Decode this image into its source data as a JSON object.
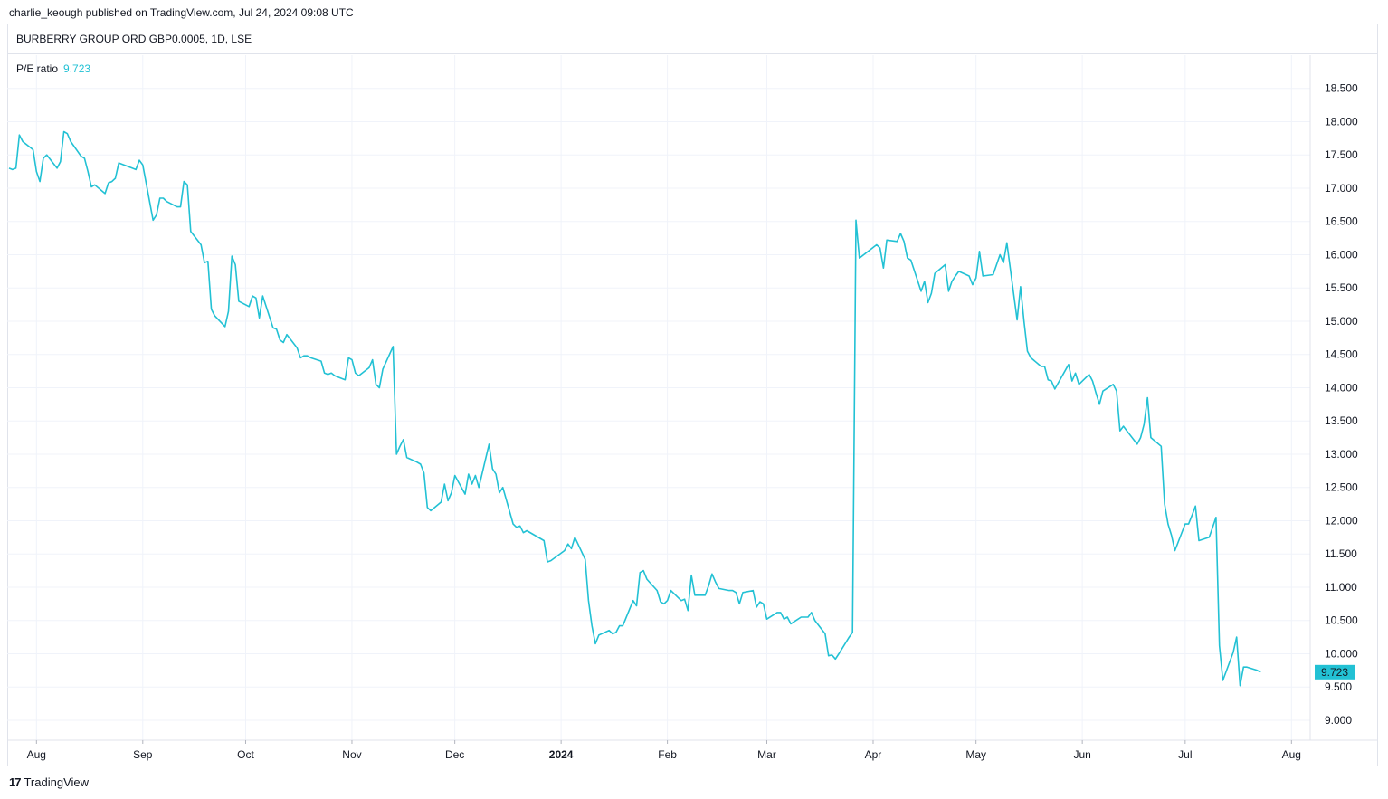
{
  "header": {
    "publish_info": "charlie_keough published on TradingView.com, Jul 24, 2024 09:08 UTC"
  },
  "symbol": {
    "text": "BURBERRY GROUP ORD GBP0.0005, 1D, LSE"
  },
  "legend": {
    "label": "P/E ratio",
    "value": "9.723"
  },
  "footer": {
    "logo": "17",
    "brand": "TradingView"
  },
  "colors": {
    "line": "#22c1d4",
    "grid": "#f0f3fa",
    "text": "#131722"
  },
  "chart_data": {
    "type": "line",
    "title": "BURBERRY GROUP ORD GBP0.0005, 1D, LSE",
    "series": [
      {
        "name": "P/E ratio"
      }
    ],
    "last_value_label": "9.723",
    "ylim": [
      8.7,
      19.0
    ],
    "y_ticks": [
      "9.000",
      "9.500",
      "10.000",
      "10.500",
      "11.000",
      "11.500",
      "12.000",
      "12.500",
      "13.000",
      "13.500",
      "14.000",
      "14.500",
      "15.000",
      "15.500",
      "16.000",
      "16.500",
      "17.000",
      "17.500",
      "18.000",
      "18.500"
    ],
    "x_ticks": [
      {
        "date": "2023-08-01",
        "label": "Aug"
      },
      {
        "date": "2023-09-01",
        "label": "Sep"
      },
      {
        "date": "2023-10-01",
        "label": "Oct"
      },
      {
        "date": "2023-11-01",
        "label": "Nov"
      },
      {
        "date": "2023-12-01",
        "label": "Dec"
      },
      {
        "date": "2024-01-01",
        "label": "2024",
        "bold": true
      },
      {
        "date": "2024-02-01",
        "label": "Feb"
      },
      {
        "date": "2024-03-01",
        "label": "Mar"
      },
      {
        "date": "2024-04-01",
        "label": "Apr"
      },
      {
        "date": "2024-05-01",
        "label": "May"
      },
      {
        "date": "2024-06-01",
        "label": "Jun"
      },
      {
        "date": "2024-07-01",
        "label": "Jul"
      },
      {
        "date": "2024-08-01",
        "label": "Aug"
      }
    ],
    "grid": true,
    "points": [
      [
        "2023-07-24",
        17.3
      ],
      [
        "2023-07-25",
        17.28
      ],
      [
        "2023-07-26",
        17.3
      ],
      [
        "2023-07-27",
        17.8
      ],
      [
        "2023-07-28",
        17.7
      ],
      [
        "2023-07-31",
        17.58
      ],
      [
        "2023-08-01",
        17.25
      ],
      [
        "2023-08-02",
        17.1
      ],
      [
        "2023-08-03",
        17.45
      ],
      [
        "2023-08-04",
        17.5
      ],
      [
        "2023-08-07",
        17.3
      ],
      [
        "2023-08-08",
        17.4
      ],
      [
        "2023-08-09",
        17.85
      ],
      [
        "2023-08-10",
        17.82
      ],
      [
        "2023-08-11",
        17.7
      ],
      [
        "2023-08-14",
        17.48
      ],
      [
        "2023-08-15",
        17.45
      ],
      [
        "2023-08-16",
        17.25
      ],
      [
        "2023-08-17",
        17.02
      ],
      [
        "2023-08-18",
        17.05
      ],
      [
        "2023-08-21",
        16.92
      ],
      [
        "2023-08-22",
        17.08
      ],
      [
        "2023-08-23",
        17.1
      ],
      [
        "2023-08-24",
        17.15
      ],
      [
        "2023-08-25",
        17.38
      ],
      [
        "2023-08-29",
        17.3
      ],
      [
        "2023-08-30",
        17.28
      ],
      [
        "2023-08-31",
        17.42
      ],
      [
        "2023-09-01",
        17.35
      ],
      [
        "2023-09-04",
        16.52
      ],
      [
        "2023-09-05",
        16.6
      ],
      [
        "2023-09-06",
        16.85
      ],
      [
        "2023-09-07",
        16.85
      ],
      [
        "2023-09-08",
        16.8
      ],
      [
        "2023-09-11",
        16.72
      ],
      [
        "2023-09-12",
        16.72
      ],
      [
        "2023-09-13",
        17.1
      ],
      [
        "2023-09-14",
        17.05
      ],
      [
        "2023-09-15",
        16.35
      ],
      [
        "2023-09-18",
        16.15
      ],
      [
        "2023-09-19",
        15.88
      ],
      [
        "2023-09-20",
        15.9
      ],
      [
        "2023-09-21",
        15.18
      ],
      [
        "2023-09-22",
        15.08
      ],
      [
        "2023-09-25",
        14.92
      ],
      [
        "2023-09-26",
        15.15
      ],
      [
        "2023-09-27",
        15.98
      ],
      [
        "2023-09-28",
        15.85
      ],
      [
        "2023-09-29",
        15.3
      ],
      [
        "2023-10-02",
        15.22
      ],
      [
        "2023-10-03",
        15.38
      ],
      [
        "2023-10-04",
        15.35
      ],
      [
        "2023-10-05",
        15.05
      ],
      [
        "2023-10-06",
        15.38
      ],
      [
        "2023-10-09",
        14.9
      ],
      [
        "2023-10-10",
        14.88
      ],
      [
        "2023-10-11",
        14.72
      ],
      [
        "2023-10-12",
        14.68
      ],
      [
        "2023-10-13",
        14.8
      ],
      [
        "2023-10-16",
        14.6
      ],
      [
        "2023-10-17",
        14.45
      ],
      [
        "2023-10-18",
        14.48
      ],
      [
        "2023-10-19",
        14.48
      ],
      [
        "2023-10-20",
        14.45
      ],
      [
        "2023-10-23",
        14.4
      ],
      [
        "2023-10-24",
        14.22
      ],
      [
        "2023-10-25",
        14.2
      ],
      [
        "2023-10-26",
        14.22
      ],
      [
        "2023-10-27",
        14.18
      ],
      [
        "2023-10-30",
        14.12
      ],
      [
        "2023-10-31",
        14.45
      ],
      [
        "2023-11-01",
        14.42
      ],
      [
        "2023-11-02",
        14.22
      ],
      [
        "2023-11-03",
        14.18
      ],
      [
        "2023-11-06",
        14.3
      ],
      [
        "2023-11-07",
        14.42
      ],
      [
        "2023-11-08",
        14.05
      ],
      [
        "2023-11-09",
        14.0
      ],
      [
        "2023-11-10",
        14.28
      ],
      [
        "2023-11-13",
        14.62
      ],
      [
        "2023-11-14",
        13.0
      ],
      [
        "2023-11-15",
        13.12
      ],
      [
        "2023-11-16",
        13.22
      ],
      [
        "2023-11-17",
        12.95
      ],
      [
        "2023-11-20",
        12.88
      ],
      [
        "2023-11-21",
        12.85
      ],
      [
        "2023-11-22",
        12.72
      ],
      [
        "2023-11-23",
        12.2
      ],
      [
        "2023-11-24",
        12.15
      ],
      [
        "2023-11-27",
        12.28
      ],
      [
        "2023-11-28",
        12.55
      ],
      [
        "2023-11-29",
        12.3
      ],
      [
        "2023-11-30",
        12.42
      ],
      [
        "2023-12-01",
        12.68
      ],
      [
        "2023-12-04",
        12.4
      ],
      [
        "2023-12-05",
        12.7
      ],
      [
        "2023-12-06",
        12.55
      ],
      [
        "2023-12-07",
        12.68
      ],
      [
        "2023-12-08",
        12.5
      ],
      [
        "2023-12-11",
        13.15
      ],
      [
        "2023-12-12",
        12.78
      ],
      [
        "2023-12-13",
        12.7
      ],
      [
        "2023-12-14",
        12.42
      ],
      [
        "2023-12-15",
        12.5
      ],
      [
        "2023-12-18",
        11.95
      ],
      [
        "2023-12-19",
        11.9
      ],
      [
        "2023-12-20",
        11.92
      ],
      [
        "2023-12-21",
        11.82
      ],
      [
        "2023-12-22",
        11.85
      ],
      [
        "2023-12-27",
        11.7
      ],
      [
        "2023-12-28",
        11.38
      ],
      [
        "2023-12-29",
        11.4
      ],
      [
        "2024-01-02",
        11.55
      ],
      [
        "2024-01-03",
        11.65
      ],
      [
        "2024-01-04",
        11.58
      ],
      [
        "2024-01-05",
        11.75
      ],
      [
        "2024-01-08",
        11.42
      ],
      [
        "2024-01-09",
        10.8
      ],
      [
        "2024-01-10",
        10.42
      ],
      [
        "2024-01-11",
        10.15
      ],
      [
        "2024-01-12",
        10.28
      ],
      [
        "2024-01-15",
        10.35
      ],
      [
        "2024-01-16",
        10.3
      ],
      [
        "2024-01-17",
        10.32
      ],
      [
        "2024-01-18",
        10.42
      ],
      [
        "2024-01-19",
        10.42
      ],
      [
        "2024-01-22",
        10.8
      ],
      [
        "2024-01-23",
        10.72
      ],
      [
        "2024-01-24",
        11.22
      ],
      [
        "2024-01-25",
        11.25
      ],
      [
        "2024-01-26",
        11.12
      ],
      [
        "2024-01-29",
        10.95
      ],
      [
        "2024-01-30",
        10.78
      ],
      [
        "2024-01-31",
        10.75
      ],
      [
        "2024-02-01",
        10.8
      ],
      [
        "2024-02-02",
        10.95
      ],
      [
        "2024-02-05",
        10.8
      ],
      [
        "2024-02-06",
        10.82
      ],
      [
        "2024-02-07",
        10.65
      ],
      [
        "2024-02-08",
        11.18
      ],
      [
        "2024-02-09",
        10.88
      ],
      [
        "2024-02-12",
        10.88
      ],
      [
        "2024-02-13",
        11.02
      ],
      [
        "2024-02-14",
        11.2
      ],
      [
        "2024-02-15",
        11.08
      ],
      [
        "2024-02-16",
        10.98
      ],
      [
        "2024-02-19",
        10.95
      ],
      [
        "2024-02-20",
        10.95
      ],
      [
        "2024-02-21",
        10.92
      ],
      [
        "2024-02-22",
        10.75
      ],
      [
        "2024-02-23",
        10.92
      ],
      [
        "2024-02-26",
        10.95
      ],
      [
        "2024-02-27",
        10.7
      ],
      [
        "2024-02-28",
        10.78
      ],
      [
        "2024-02-29",
        10.75
      ],
      [
        "2024-03-01",
        10.52
      ],
      [
        "2024-03-04",
        10.62
      ],
      [
        "2024-03-05",
        10.62
      ],
      [
        "2024-03-06",
        10.52
      ],
      [
        "2024-03-07",
        10.55
      ],
      [
        "2024-03-08",
        10.45
      ],
      [
        "2024-03-11",
        10.55
      ],
      [
        "2024-03-12",
        10.55
      ],
      [
        "2024-03-13",
        10.55
      ],
      [
        "2024-03-14",
        10.62
      ],
      [
        "2024-03-15",
        10.5
      ],
      [
        "2024-03-18",
        10.3
      ],
      [
        "2024-03-19",
        9.97
      ],
      [
        "2024-03-20",
        9.98
      ],
      [
        "2024-03-21",
        9.92
      ],
      [
        "2024-03-22",
        10.0
      ],
      [
        "2024-03-25",
        10.25
      ],
      [
        "2024-03-26",
        10.32
      ],
      [
        "2024-03-27",
        16.52
      ],
      [
        "2024-03-28",
        15.95
      ],
      [
        "2024-04-02",
        16.15
      ],
      [
        "2024-04-03",
        16.1
      ],
      [
        "2024-04-04",
        15.8
      ],
      [
        "2024-04-05",
        16.22
      ],
      [
        "2024-04-08",
        16.2
      ],
      [
        "2024-04-09",
        16.32
      ],
      [
        "2024-04-10",
        16.2
      ],
      [
        "2024-04-11",
        15.95
      ],
      [
        "2024-04-12",
        15.92
      ],
      [
        "2024-04-15",
        15.45
      ],
      [
        "2024-04-16",
        15.6
      ],
      [
        "2024-04-17",
        15.28
      ],
      [
        "2024-04-18",
        15.42
      ],
      [
        "2024-04-19",
        15.72
      ],
      [
        "2024-04-22",
        15.85
      ],
      [
        "2024-04-23",
        15.45
      ],
      [
        "2024-04-24",
        15.6
      ],
      [
        "2024-04-25",
        15.68
      ],
      [
        "2024-04-26",
        15.75
      ],
      [
        "2024-04-29",
        15.68
      ],
      [
        "2024-04-30",
        15.55
      ],
      [
        "2024-05-01",
        15.65
      ],
      [
        "2024-05-02",
        16.05
      ],
      [
        "2024-05-03",
        15.68
      ],
      [
        "2024-05-06",
        15.7
      ],
      [
        "2024-05-07",
        15.85
      ],
      [
        "2024-05-08",
        16.0
      ],
      [
        "2024-05-09",
        15.88
      ],
      [
        "2024-05-10",
        16.18
      ],
      [
        "2024-05-13",
        15.02
      ],
      [
        "2024-05-14",
        15.52
      ],
      [
        "2024-05-15",
        15.0
      ],
      [
        "2024-05-16",
        14.55
      ],
      [
        "2024-05-17",
        14.45
      ],
      [
        "2024-05-20",
        14.32
      ],
      [
        "2024-05-21",
        14.32
      ],
      [
        "2024-05-22",
        14.12
      ],
      [
        "2024-05-23",
        14.1
      ],
      [
        "2024-05-24",
        13.98
      ],
      [
        "2024-05-28",
        14.35
      ],
      [
        "2024-05-29",
        14.1
      ],
      [
        "2024-05-30",
        14.22
      ],
      [
        "2024-05-31",
        14.05
      ],
      [
        "2024-06-03",
        14.2
      ],
      [
        "2024-06-04",
        14.1
      ],
      [
        "2024-06-05",
        13.92
      ],
      [
        "2024-06-06",
        13.75
      ],
      [
        "2024-06-07",
        13.95
      ],
      [
        "2024-06-10",
        14.05
      ],
      [
        "2024-06-11",
        13.95
      ],
      [
        "2024-06-12",
        13.35
      ],
      [
        "2024-06-13",
        13.42
      ],
      [
        "2024-06-14",
        13.35
      ],
      [
        "2024-06-17",
        13.15
      ],
      [
        "2024-06-18",
        13.25
      ],
      [
        "2024-06-19",
        13.45
      ],
      [
        "2024-06-20",
        13.85
      ],
      [
        "2024-06-21",
        13.25
      ],
      [
        "2024-06-24",
        13.12
      ],
      [
        "2024-06-25",
        12.25
      ],
      [
        "2024-06-26",
        11.95
      ],
      [
        "2024-06-27",
        11.78
      ],
      [
        "2024-06-28",
        11.55
      ],
      [
        "2024-07-01",
        11.95
      ],
      [
        "2024-07-02",
        11.95
      ],
      [
        "2024-07-03",
        12.08
      ],
      [
        "2024-07-04",
        12.22
      ],
      [
        "2024-07-05",
        11.7
      ],
      [
        "2024-07-08",
        11.75
      ],
      [
        "2024-07-09",
        11.9
      ],
      [
        "2024-07-10",
        12.05
      ],
      [
        "2024-07-11",
        10.12
      ],
      [
        "2024-07-12",
        9.6
      ],
      [
        "2024-07-15",
        10.02
      ],
      [
        "2024-07-16",
        10.25
      ],
      [
        "2024-07-17",
        9.52
      ],
      [
        "2024-07-18",
        9.8
      ],
      [
        "2024-07-19",
        9.8
      ],
      [
        "2024-07-22",
        9.75
      ],
      [
        "2024-07-23",
        9.723
      ]
    ]
  }
}
